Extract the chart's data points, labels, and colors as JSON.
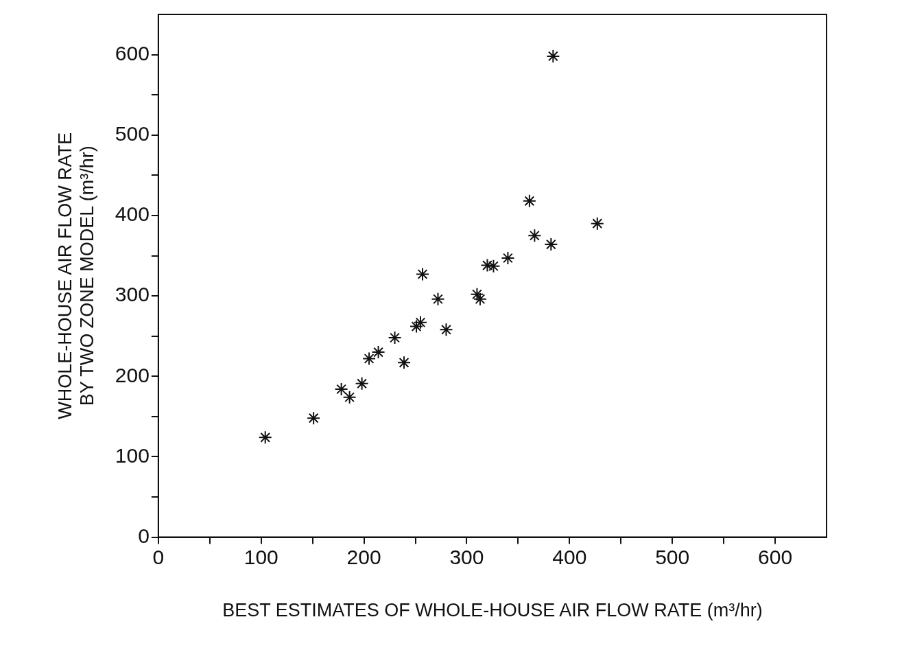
{
  "chart_data": {
    "type": "scatter",
    "xlabel": "BEST ESTIMATES OF WHOLE-HOUSE AIR FLOW RATE (m³/hr)",
    "ylabel": "WHOLE-HOUSE AIR FLOW RATE\nBY TWO ZONE MODEL (m³/hr)",
    "xlim": [
      0,
      650
    ],
    "ylim": [
      0,
      650
    ],
    "xticks": [
      0,
      {
        "value": 50,
        "label": null
      },
      100,
      {
        "value": 150,
        "label": null
      },
      200,
      {
        "value": 250,
        "label": null
      },
      300,
      {
        "value": 350,
        "label": null
      },
      400,
      {
        "value": 450,
        "label": null
      },
      500,
      {
        "value": 550,
        "label": null
      },
      600
    ],
    "yticks": [
      0,
      {
        "value": 50,
        "label": null
      },
      100,
      {
        "value": 150,
        "label": null
      },
      200,
      {
        "value": 250,
        "label": null
      },
      300,
      {
        "value": 350,
        "label": null
      },
      400,
      {
        "value": 450,
        "label": null
      },
      500,
      {
        "value": 550,
        "label": null
      },
      600
    ],
    "grid": false,
    "legend": false,
    "marker": "cross",
    "series": [
      {
        "color": "#111111",
        "x": [
          104,
          151,
          178,
          186,
          198,
          205,
          214,
          230,
          239,
          251,
          255,
          257,
          272,
          280,
          310,
          313,
          320,
          326,
          340,
          361,
          366,
          382,
          384,
          427
        ],
        "values": [
          124,
          148,
          184,
          174,
          191,
          222,
          230,
          248,
          217,
          262,
          267,
          327,
          296,
          258,
          302,
          296,
          338,
          337,
          347,
          418,
          375,
          364,
          598,
          390
        ]
      }
    ]
  }
}
